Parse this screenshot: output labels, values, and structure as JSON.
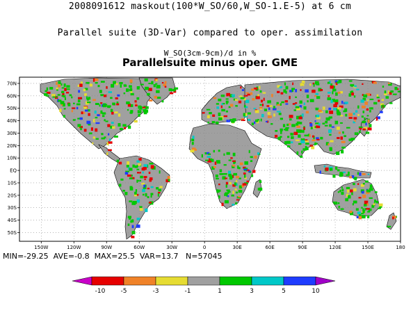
{
  "titles": {
    "line1": "2008091612 maskout(100*W_SO/60,W_SO-1.E-5) at 6 cm",
    "line2": "Parallel suite (3D-Var) compared to oper. assimilation",
    "line3": "W_SO(3cm-9cm)/d in %",
    "line4": "Parallelsuite minus oper. GME"
  },
  "axes": {
    "lon_labels": [
      "150W",
      "120W",
      "90W",
      "60W",
      "30W",
      "0",
      "30E",
      "60E",
      "90E",
      "120E",
      "150E",
      "180"
    ],
    "lat_labels": [
      "70N",
      "60N",
      "50N",
      "40N",
      "30N",
      "20N",
      "10N",
      "EQ",
      "10S",
      "20S",
      "30S",
      "40S",
      "50S"
    ]
  },
  "stats": {
    "text": "MIN=-29.25  AVE=-0.8  MAX=25.5  VAR=13.7   N=57045"
  },
  "colorbar": {
    "labels": [
      "-10",
      "-5",
      "-3",
      "-1",
      "1",
      "3",
      "5",
      "10"
    ],
    "colors": {
      "below": "#c800c8",
      "bins": [
        "#e60000",
        "#f08228",
        "#e6dc32",
        "#a0a0a0",
        "#00c800",
        "#00c8c8",
        "#1e3cff"
      ],
      "above": "#a000c8"
    }
  },
  "map_colors": {
    "ocean": "#ffffff",
    "land_base": "#a0a0a0",
    "coast": "#000000",
    "grid": "#888888"
  }
}
